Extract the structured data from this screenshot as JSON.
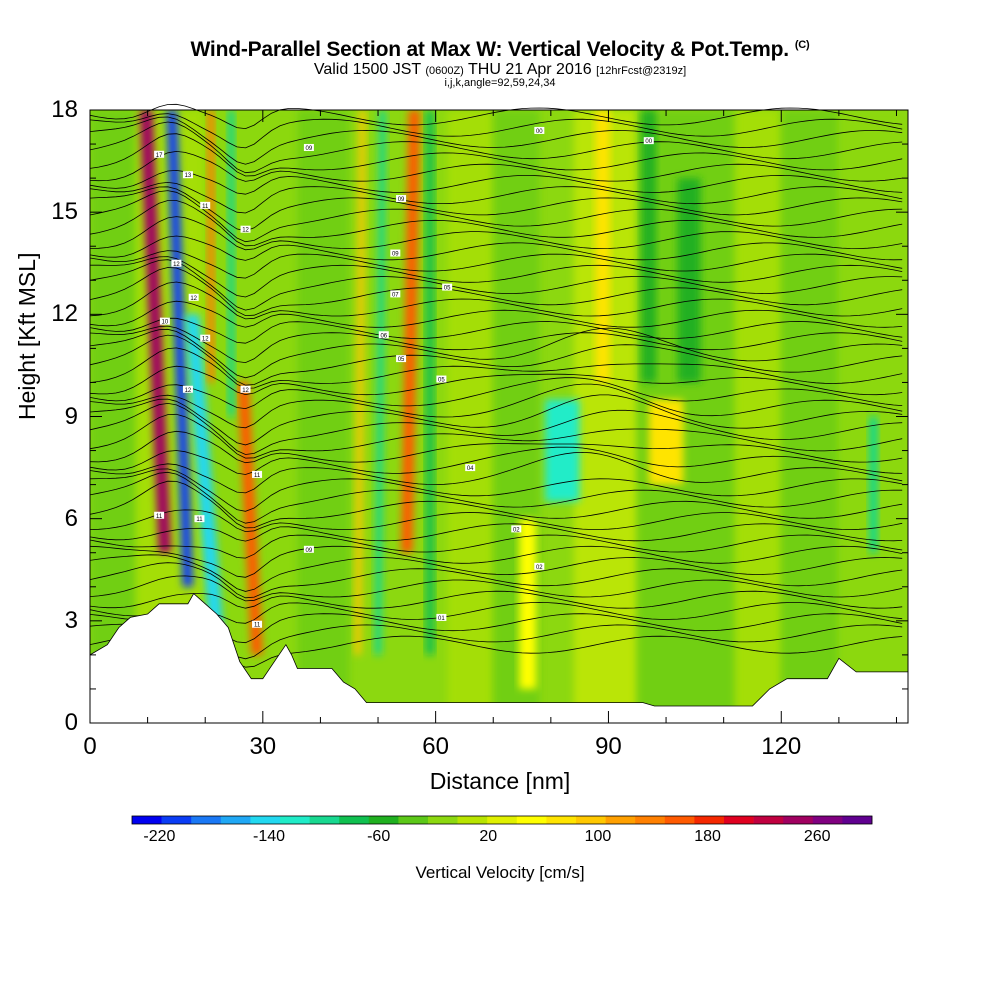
{
  "chart_data": {
    "type": "heatmap",
    "title": "Wind-Parallel Section at Max W: Vertical Velocity & Pot.Temp.",
    "title_mark": "(C)",
    "subtitle": "Valid 1500 JST",
    "subtitle_utc": "(0600Z)",
    "subtitle_date": "THU 21 Apr 2016",
    "subtitle_fcst": "[12hrFcst@2319z]",
    "subtitle2": "i,j,k,angle=92,59,24,34",
    "xlabel": "Distance [nm]",
    "ylabel": "Height [Kft MSL]",
    "xlim": [
      0,
      142
    ],
    "ylim": [
      0,
      18
    ],
    "xticks": [
      "0",
      "30",
      "60",
      "90",
      "120"
    ],
    "yticks": [
      "0",
      "3",
      "6",
      "9",
      "12",
      "15",
      "18"
    ],
    "colorbar": {
      "label": "Vertical Velocity [cm/s]",
      "tick_labels": [
        "-220",
        "-140",
        "-60",
        "20",
        "100",
        "180",
        "260"
      ],
      "colors": [
        "#0000f0",
        "#0a3cf5",
        "#1a78f5",
        "#20a8f5",
        "#22d8f0",
        "#20ecc8",
        "#18d890",
        "#10c050",
        "#20b020",
        "#5cc818",
        "#8cd810",
        "#b8e400",
        "#e0f000",
        "#ffff00",
        "#ffe400",
        "#ffc800",
        "#ffa000",
        "#ff8000",
        "#ff5a00",
        "#f52800",
        "#e00020",
        "#c00040",
        "#a00060",
        "#800080",
        "#600090"
      ]
    },
    "velocity_features": [
      {
        "x": 13,
        "width": 2.2,
        "bottom": 5,
        "top": 18,
        "slope": -0.25,
        "value": 240
      },
      {
        "x": 17,
        "width": 1.8,
        "bottom": 4,
        "top": 18,
        "slope": -0.2,
        "value": -200
      },
      {
        "x": 22,
        "width": 2.5,
        "bottom": 2.5,
        "top": 12,
        "slope": -0.45,
        "value": -150
      },
      {
        "x": 29,
        "width": 2.0,
        "bottom": 2,
        "top": 10,
        "slope": -0.3,
        "value": 160
      },
      {
        "x": 21,
        "width": 1.2,
        "bottom": 10,
        "top": 18,
        "slope": 0,
        "value": 140
      },
      {
        "x": 24.5,
        "width": 1.2,
        "bottom": 9,
        "top": 18,
        "slope": 0,
        "value": -100
      },
      {
        "x": 46.5,
        "width": 1.1,
        "bottom": 2,
        "top": 18,
        "slope": 0.05,
        "value": 90
      },
      {
        "x": 50,
        "width": 1.2,
        "bottom": 2,
        "top": 18,
        "slope": 0.05,
        "value": -90
      },
      {
        "x": 55,
        "width": 2.0,
        "bottom": 5,
        "top": 18,
        "slope": 0.1,
        "value": 150
      },
      {
        "x": 59,
        "width": 1.5,
        "bottom": 2,
        "top": 18,
        "slope": 0,
        "value": -70
      },
      {
        "x": 82,
        "width": 6,
        "bottom": 6.5,
        "top": 9.5,
        "slope": 0,
        "value": -120
      },
      {
        "x": 100,
        "width": 6,
        "bottom": 7,
        "top": 9.5,
        "slope": 0,
        "value": 70
      },
      {
        "x": 89,
        "width": 2.5,
        "bottom": 10,
        "top": 18,
        "slope": 0,
        "value": 80
      },
      {
        "x": 97,
        "width": 2.5,
        "bottom": 10,
        "top": 18,
        "slope": 0,
        "value": -60
      },
      {
        "x": 136,
        "width": 1.5,
        "bottom": 5,
        "top": 9,
        "slope": 0,
        "value": -110
      },
      {
        "x": 104,
        "width": 4,
        "bottom": 10,
        "top": 16,
        "slope": 0,
        "value": -50
      },
      {
        "x": 76,
        "width": 3,
        "bottom": 1,
        "top": 6,
        "slope": 0,
        "value": 60
      }
    ],
    "terrain": [
      [
        0,
        2.0
      ],
      [
        3,
        2.3
      ],
      [
        5,
        2.8
      ],
      [
        7,
        3.1
      ],
      [
        10,
        3.2
      ],
      [
        12,
        3.5
      ],
      [
        17,
        3.5
      ],
      [
        18,
        3.8
      ],
      [
        20,
        3.5
      ],
      [
        22,
        3.2
      ],
      [
        24,
        2.8
      ],
      [
        26,
        1.8
      ],
      [
        28,
        1.3
      ],
      [
        30,
        1.3
      ],
      [
        32,
        1.8
      ],
      [
        34,
        2.3
      ],
      [
        35,
        2.0
      ],
      [
        36,
        1.6
      ],
      [
        42,
        1.6
      ],
      [
        44,
        1.2
      ],
      [
        46,
        1.0
      ],
      [
        48,
        0.6
      ],
      [
        63,
        0.6
      ],
      [
        66,
        0.6
      ],
      [
        78,
        0.6
      ],
      [
        85,
        0.6
      ],
      [
        90,
        0.6
      ],
      [
        96,
        0.6
      ],
      [
        98,
        0.5
      ],
      [
        115,
        0.5
      ],
      [
        118,
        1.0
      ],
      [
        121,
        1.3
      ],
      [
        128,
        1.3
      ],
      [
        130,
        1.9
      ],
      [
        133,
        1.5
      ],
      [
        142,
        1.5
      ]
    ],
    "theta_labels": [
      "17",
      "13",
      "11",
      "12",
      "12",
      "12",
      "10",
      "12",
      "12",
      "12",
      "11",
      "11",
      "11",
      "11",
      "09",
      "09",
      "09",
      "09",
      "07",
      "06",
      "05",
      "05",
      "05",
      "04",
      "02",
      "02",
      "01",
      "00",
      "00"
    ]
  }
}
